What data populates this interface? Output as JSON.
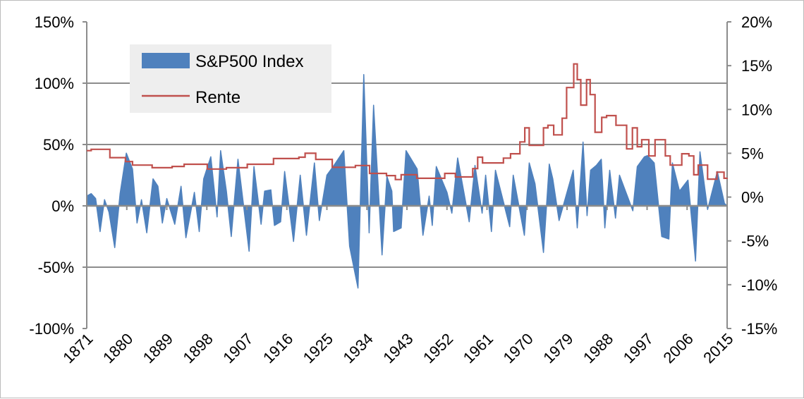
{
  "chart_data": {
    "type": "area+line",
    "title": "",
    "xlabel": "",
    "ylabel_left": "",
    "ylabel_right": "",
    "x_range": [
      1871,
      2015
    ],
    "x_ticks": [
      "1871",
      "1880",
      "1889",
      "1898",
      "1907",
      "1916",
      "1925",
      "1934",
      "1943",
      "1952",
      "1961",
      "1970",
      "1979",
      "1988",
      "1997",
      "2006",
      "2015"
    ],
    "y_left_range": [
      -100,
      150
    ],
    "y_left_ticks": [
      "150%",
      "100%",
      "50%",
      "0%",
      "-50%",
      "-100%"
    ],
    "y_right_range": [
      -15,
      20
    ],
    "y_right_ticks": [
      "20%",
      "15%",
      "10%",
      "5%",
      "0%",
      "-5%",
      "-10%",
      "-15%"
    ],
    "grid": "horizontal",
    "legend_position": "top-left",
    "series": [
      {
        "name": "S&P500 Index",
        "type": "area",
        "axis": "left",
        "color": "#4f81bd",
        "points": [
          [
            1871,
            8
          ],
          [
            1872,
            10
          ],
          [
            1873,
            6
          ],
          [
            1874,
            -21
          ],
          [
            1875,
            5
          ],
          [
            1876,
            -5
          ],
          [
            1877.3,
            -34
          ],
          [
            1878.5,
            10
          ],
          [
            1879.9,
            43
          ],
          [
            1881.3,
            30
          ],
          [
            1882.3,
            -14
          ],
          [
            1883.3,
            5
          ],
          [
            1884.5,
            -22
          ],
          [
            1885.9,
            22
          ],
          [
            1887,
            16
          ],
          [
            1888,
            -14
          ],
          [
            1889,
            6
          ],
          [
            1890.8,
            -15
          ],
          [
            1892.2,
            16
          ],
          [
            1893.3,
            -26
          ],
          [
            1895.2,
            11
          ],
          [
            1896.3,
            -21
          ],
          [
            1897.3,
            22
          ],
          [
            1898.9,
            40
          ],
          [
            1900.3,
            -9
          ],
          [
            1901.1,
            45
          ],
          [
            1902.4,
            12
          ],
          [
            1903.5,
            -25
          ],
          [
            1905,
            38
          ],
          [
            1907.5,
            -37
          ],
          [
            1908.6,
            32
          ],
          [
            1910.2,
            -15
          ],
          [
            1911,
            12
          ],
          [
            1912.4,
            13
          ],
          [
            1913.2,
            -16
          ],
          [
            1914.6,
            -13
          ],
          [
            1915.5,
            28
          ],
          [
            1917.5,
            -29
          ],
          [
            1919,
            25
          ],
          [
            1920.4,
            -24
          ],
          [
            1922.2,
            35
          ],
          [
            1923.3,
            -12
          ],
          [
            1925,
            25
          ],
          [
            1926.6,
            33
          ],
          [
            1928.8,
            45
          ],
          [
            1930.1,
            -33
          ],
          [
            1932,
            -67
          ],
          [
            1933.3,
            107
          ],
          [
            1934.5,
            -22
          ],
          [
            1935.5,
            82
          ],
          [
            1937.4,
            -40
          ],
          [
            1938.5,
            24
          ],
          [
            1939.6,
            12
          ],
          [
            1940,
            -21
          ],
          [
            1941.7,
            -18
          ],
          [
            1942.8,
            45
          ],
          [
            1945.3,
            30
          ],
          [
            1946.6,
            -24
          ],
          [
            1948,
            8
          ],
          [
            1948.7,
            -16
          ],
          [
            1949.6,
            32
          ],
          [
            1952,
            11
          ],
          [
            1953.1,
            -6
          ],
          [
            1954.4,
            39
          ],
          [
            1957,
            -13
          ],
          [
            1958.3,
            33
          ],
          [
            1959.9,
            -6
          ],
          [
            1960.7,
            25
          ],
          [
            1962,
            -21
          ],
          [
            1962.9,
            29
          ],
          [
            1966.1,
            -17
          ],
          [
            1966.9,
            25
          ],
          [
            1969.4,
            -24
          ],
          [
            1970.5,
            35
          ],
          [
            1971.8,
            18
          ],
          [
            1973.7,
            -38
          ],
          [
            1975,
            34
          ],
          [
            1975.8,
            22
          ],
          [
            1977.2,
            -12
          ],
          [
            1980.4,
            29
          ],
          [
            1981.3,
            -18
          ],
          [
            1982.6,
            52
          ],
          [
            1983.5,
            -8
          ],
          [
            1984.3,
            29
          ],
          [
            1985.6,
            33
          ],
          [
            1986.7,
            38
          ],
          [
            1987.5,
            -18
          ],
          [
            1988.6,
            29
          ],
          [
            1989.9,
            -10
          ],
          [
            1990.8,
            25
          ],
          [
            1993.8,
            -4
          ],
          [
            1994.8,
            32
          ],
          [
            1996.4,
            40
          ],
          [
            1997.1,
            41
          ],
          [
            1998.6,
            35
          ],
          [
            2000.3,
            -25
          ],
          [
            2001.9,
            -27
          ],
          [
            2002.7,
            35
          ],
          [
            2004.3,
            12
          ],
          [
            2006.2,
            21
          ],
          [
            2007.9,
            -45
          ],
          [
            2008.9,
            44
          ],
          [
            2010.6,
            -3
          ],
          [
            2012.8,
            28
          ],
          [
            2014.4,
            2
          ],
          [
            2015,
            0
          ]
        ]
      },
      {
        "name": "Rente",
        "type": "line",
        "axis": "right",
        "color": "#c0504d",
        "points": [
          [
            1871,
            5.3
          ],
          [
            1872,
            5.45
          ],
          [
            1874,
            5.45
          ],
          [
            1876.2,
            4.5
          ],
          [
            1879.7,
            4.05
          ],
          [
            1881.3,
            3.65
          ],
          [
            1885.7,
            3.35
          ],
          [
            1890.2,
            3.5
          ],
          [
            1892.9,
            3.75
          ],
          [
            1898.1,
            3.2
          ],
          [
            1902.4,
            3.35
          ],
          [
            1907.1,
            3.75
          ],
          [
            1913,
            4.4
          ],
          [
            1916.6,
            4.4
          ],
          [
            1918.7,
            4.55
          ],
          [
            1920.1,
            5.0
          ],
          [
            1922.5,
            4.3
          ],
          [
            1926.2,
            3.4
          ],
          [
            1931.4,
            3.6
          ],
          [
            1934.6,
            2.7
          ],
          [
            1938.4,
            2.45
          ],
          [
            1940.4,
            2.0
          ],
          [
            1941.7,
            2.55
          ],
          [
            1945.2,
            2.15
          ],
          [
            1951.5,
            2.7
          ],
          [
            1953.4,
            2.7
          ],
          [
            1953.9,
            2.3
          ],
          [
            1957.8,
            3.25
          ],
          [
            1958.9,
            4.55
          ],
          [
            1960,
            3.9
          ],
          [
            1964.7,
            4.45
          ],
          [
            1966.3,
            4.95
          ],
          [
            1968.4,
            6.3
          ],
          [
            1969.5,
            7.9
          ],
          [
            1970.5,
            5.9
          ],
          [
            1973.7,
            7.9
          ],
          [
            1974.7,
            8.2
          ],
          [
            1976,
            7.1
          ],
          [
            1977.9,
            9.0
          ],
          [
            1978.9,
            12.5
          ],
          [
            1980.5,
            15.2
          ],
          [
            1981.3,
            13.4
          ],
          [
            1982.1,
            10.5
          ],
          [
            1983.4,
            13.4
          ],
          [
            1984.2,
            11.7
          ],
          [
            1985.3,
            7.4
          ],
          [
            1986.8,
            9.1
          ],
          [
            1987.9,
            9.3
          ],
          [
            1990,
            8.2
          ],
          [
            1992.4,
            5.5
          ],
          [
            1993.7,
            7.9
          ],
          [
            1994.8,
            5.75
          ],
          [
            1995.8,
            6.55
          ],
          [
            1997.4,
            4.7
          ],
          [
            1998.8,
            6.55
          ],
          [
            2001.1,
            4.7
          ],
          [
            2002.2,
            3.65
          ],
          [
            2004.8,
            4.95
          ],
          [
            2006.4,
            4.7
          ],
          [
            2007.5,
            2.55
          ],
          [
            2008.5,
            3.65
          ],
          [
            2010.6,
            2.05
          ],
          [
            2012.7,
            2.85
          ],
          [
            2014.3,
            2.15
          ],
          [
            2015,
            2.2
          ]
        ]
      }
    ]
  }
}
